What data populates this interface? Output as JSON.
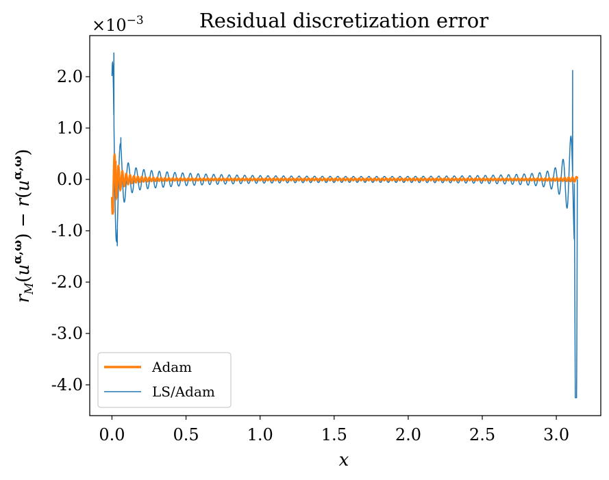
{
  "chart_data": {
    "type": "line",
    "title": "Residual discretization error",
    "xlabel": "x",
    "ylabel": "r_M(u^{α,ω}) − r(u^{α,ω})",
    "y_scale_note": "×10^-3",
    "xlim": [
      -0.15,
      3.3
    ],
    "ylim": [
      -4.6,
      2.8
    ],
    "x_ticks": [
      0.0,
      0.5,
      1.0,
      1.5,
      2.0,
      2.5,
      3.0
    ],
    "x_tick_labels": [
      "0.0",
      "0.5",
      "1.0",
      "1.5",
      "2.0",
      "2.5",
      "3.0"
    ],
    "y_ticks": [
      2.0,
      1.0,
      0.0,
      -1.0,
      -2.0,
      -3.0,
      -4.0
    ],
    "y_tick_labels": [
      "2.0",
      "1.0",
      "0.0",
      "-1.0",
      "-2.0",
      "-3.0",
      "-4.0"
    ],
    "grid": false,
    "legend_position": "lower-left",
    "series": [
      {
        "name": "Adam",
        "color": "#ff7f0e",
        "style": "thick",
        "x_range": [
          0.0,
          3.1416
        ],
        "oscillation_period": 0.0262,
        "key_points": [
          [
            0.0,
            0.0
          ],
          [
            0.008,
            -0.65
          ],
          [
            0.025,
            0.36
          ],
          [
            0.045,
            -0.25
          ],
          [
            0.075,
            0.15
          ],
          [
            0.2,
            0.02
          ],
          [
            3.0,
            0.02
          ],
          [
            3.14,
            0.05
          ]
        ]
      },
      {
        "name": "LS/Adam",
        "color": "#1f77b4",
        "style": "thin",
        "x_range": [
          0.0,
          3.1416
        ],
        "oscillation_period": 0.0524,
        "key_points": [
          [
            0.0,
            0.0
          ],
          [
            0.013,
            2.47
          ],
          [
            0.036,
            -1.3
          ],
          [
            0.06,
            0.82
          ],
          [
            0.085,
            -0.55
          ],
          [
            0.3,
            0.15
          ],
          [
            1.57,
            0.05
          ],
          [
            2.8,
            0.18
          ],
          [
            3.0,
            0.35
          ],
          [
            3.06,
            0.9
          ],
          [
            3.09,
            -1.3
          ],
          [
            3.11,
            2.13
          ],
          [
            3.13,
            -4.25
          ],
          [
            3.1416,
            0.0
          ]
        ]
      }
    ]
  }
}
